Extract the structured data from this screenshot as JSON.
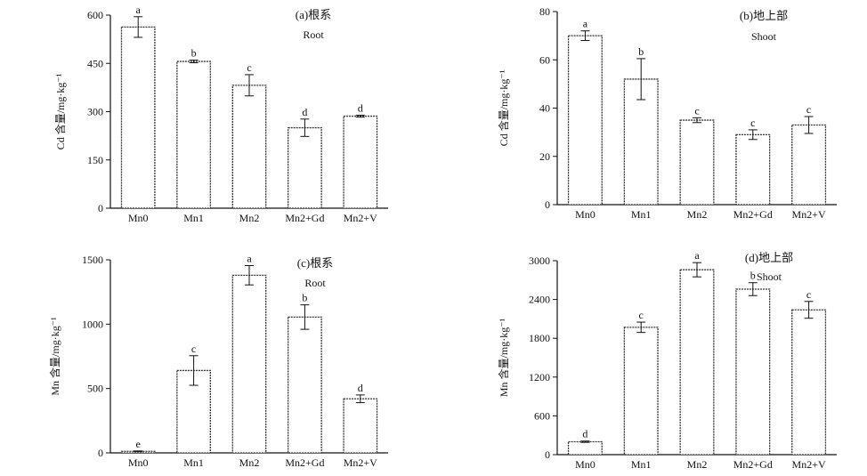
{
  "chart_data": [
    {
      "type": "bar",
      "title": "(a)根系",
      "subtitle": "Root",
      "ylabel": "Cd 含量/mg·kg⁻¹",
      "categories": [
        "Mn0",
        "Mn1",
        "Mn2",
        "Mn2+Gd",
        "Mn2+V"
      ],
      "values": [
        563,
        456,
        382,
        250,
        286
      ],
      "errors": [
        32,
        4,
        33,
        27,
        3
      ],
      "significance": [
        "a",
        "b",
        "c",
        "d",
        "d"
      ],
      "ylim": [
        0,
        600
      ],
      "yticks": [
        0,
        150,
        300,
        450,
        600
      ]
    },
    {
      "type": "bar",
      "title": "(b)地上部",
      "subtitle": "Shoot",
      "ylabel": "Cd 含量/mg·kg⁻¹",
      "categories": [
        "Mn0",
        "Mn1",
        "Mn2",
        "Mn2+Gd",
        "Mn2+V"
      ],
      "values": [
        70,
        52,
        35,
        29,
        33
      ],
      "errors": [
        2,
        8.5,
        1,
        2,
        3.5
      ],
      "significance": [
        "a",
        "b",
        "c",
        "c",
        "c"
      ],
      "ylim": [
        0,
        80
      ],
      "yticks": [
        0,
        20,
        40,
        60,
        80
      ]
    },
    {
      "type": "bar",
      "title": "(c)根系",
      "subtitle": "Root",
      "ylabel": "Mn 含量/mg·kg⁻¹",
      "categories": [
        "Mn0",
        "Mn1",
        "Mn2",
        "Mn2+Gd",
        "Mn2+V"
      ],
      "values": [
        12,
        640,
        1380,
        1055,
        420
      ],
      "errors": [
        3,
        115,
        75,
        95,
        30
      ],
      "significance": [
        "e",
        "c",
        "a",
        "b",
        "d"
      ],
      "ylim": [
        0,
        1500
      ],
      "yticks": [
        0,
        500,
        1000,
        1500
      ]
    },
    {
      "type": "bar",
      "title": "(d)地上部",
      "subtitle": "Shoot",
      "ylabel": "Mn 含量/mg·kg⁻¹",
      "categories": [
        "Mn0",
        "Mn1",
        "Mn2",
        "Mn2+Gd",
        "Mn2+V"
      ],
      "values": [
        200,
        1970,
        2860,
        2560,
        2240
      ],
      "errors": [
        10,
        80,
        110,
        100,
        130
      ],
      "significance": [
        "d",
        "c",
        "a",
        "b",
        "c"
      ],
      "ylim": [
        0,
        3000
      ],
      "yticks": [
        0,
        600,
        1200,
        1800,
        2400,
        3000
      ]
    }
  ]
}
